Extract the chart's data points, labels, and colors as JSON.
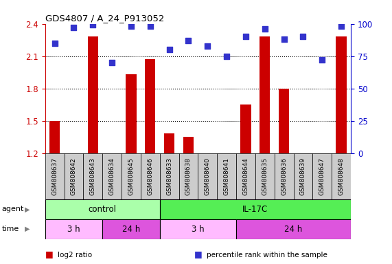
{
  "title": "GDS4807 / A_24_P913052",
  "samples": [
    "GSM808637",
    "GSM808642",
    "GSM808643",
    "GSM808634",
    "GSM808645",
    "GSM808646",
    "GSM808633",
    "GSM808638",
    "GSM808640",
    "GSM808641",
    "GSM808644",
    "GSM808635",
    "GSM808636",
    "GSM808639",
    "GSM808647",
    "GSM808648"
  ],
  "log2_ratio": [
    1.5,
    1.2,
    2.28,
    1.2,
    1.93,
    2.07,
    1.38,
    1.35,
    1.2,
    1.2,
    1.65,
    2.28,
    1.8,
    1.2,
    1.2,
    2.28
  ],
  "percentile": [
    85,
    97,
    99,
    70,
    98,
    98,
    80,
    87,
    83,
    75,
    90,
    96,
    88,
    90,
    72,
    98
  ],
  "ylim_left": [
    1.2,
    2.4
  ],
  "ylim_right": [
    0,
    100
  ],
  "yticks_left": [
    1.2,
    1.5,
    1.8,
    2.1,
    2.4
  ],
  "yticks_right": [
    0,
    25,
    50,
    75,
    100
  ],
  "bar_color": "#cc0000",
  "dot_color": "#3333cc",
  "agent_groups": [
    {
      "label": "control",
      "start": 0,
      "end": 6,
      "color": "#aaffaa"
    },
    {
      "label": "IL-17C",
      "start": 6,
      "end": 16,
      "color": "#55ee55"
    }
  ],
  "time_groups": [
    {
      "label": "3 h",
      "start": 0,
      "end": 3,
      "color": "#ffbbff"
    },
    {
      "label": "24 h",
      "start": 3,
      "end": 6,
      "color": "#dd55dd"
    },
    {
      "label": "3 h",
      "start": 6,
      "end": 10,
      "color": "#ffbbff"
    },
    {
      "label": "24 h",
      "start": 10,
      "end": 16,
      "color": "#dd55dd"
    }
  ],
  "legend_items": [
    {
      "color": "#cc0000",
      "label": "log2 ratio"
    },
    {
      "color": "#3333cc",
      "label": "percentile rank within the sample"
    }
  ],
  "left_axis_color": "#cc0000",
  "right_axis_color": "#0000cc",
  "grid_color": "black",
  "bar_width": 0.55,
  "dot_size": 30,
  "sample_box_color": "#cccccc"
}
